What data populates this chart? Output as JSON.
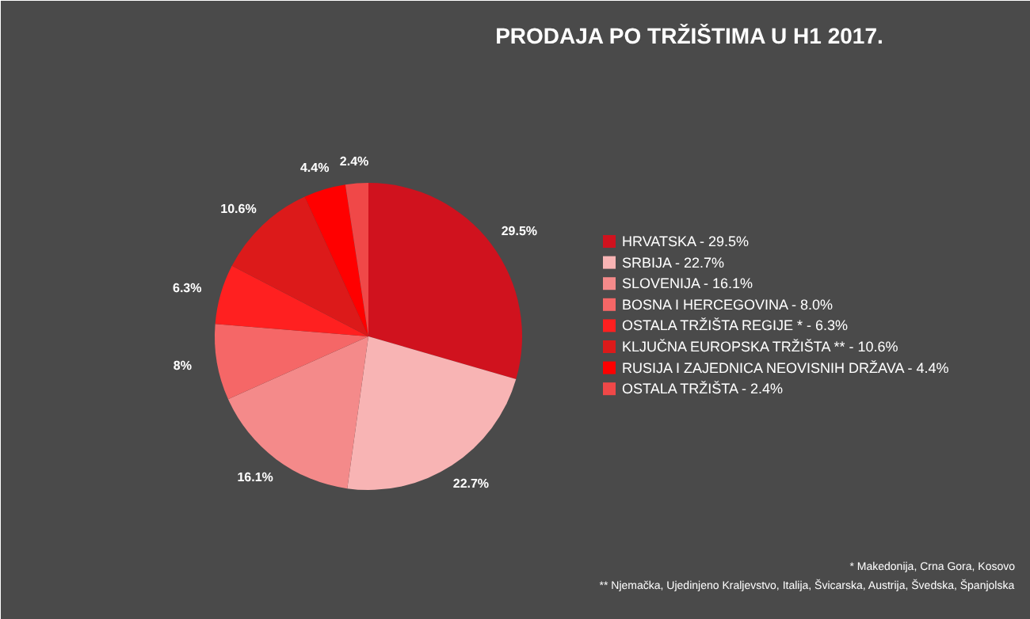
{
  "chart_data": {
    "type": "pie",
    "title": "PRODAJA PO TRŽIŠTIMA U H1 2017.",
    "categories": [
      "HRVATSKA - 29.5%",
      "SRBIJA - 22.7%",
      "SLOVENIJA - 16.1%",
      "BOSNA I HERCEGOVINA - 8.0%",
      "OSTALA TRŽIŠTA REGIJE * - 6.3%",
      "KLJUČNA EUROPSKA TRŽIŠTA ** - 10.6%",
      "RUSIJA I ZAJEDNICA NEOVISNIH DRŽAVA - 4.4%",
      "OSTALA TRŽIŠTA - 2.4%"
    ],
    "values": [
      29.5,
      22.7,
      16.1,
      8.0,
      6.3,
      10.6,
      4.4,
      2.4
    ],
    "value_labels": [
      "29.5%",
      "22.7%",
      "16.1%",
      "8%",
      "6.3%",
      "10.6%",
      "4.4%",
      "2.4%"
    ],
    "colors": [
      "#d0121e",
      "#f8b4b4",
      "#f48a8a",
      "#f56767",
      "#ff2020",
      "#dc1a1a",
      "#ff0000",
      "#f04848"
    ],
    "legend": "right",
    "annotations": [
      "* Makedonija, Crna Gora, Kosovo",
      "** Njemačka, Ujedinjeno Kraljevstvo, Italija, Švicarska, Austrija, Švedska, Španjolska"
    ]
  }
}
